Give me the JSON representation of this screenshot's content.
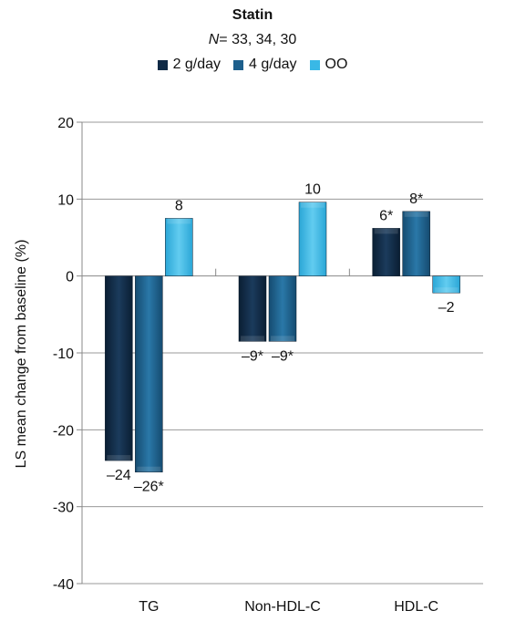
{
  "chart_data": {
    "type": "bar",
    "title": "Statin",
    "subtitle_prefix": "N",
    "subtitle_rest": "= 33, 34, 30",
    "ylabel": "LS mean change from baseline (%)",
    "xlabel": "",
    "ylim": [
      -40,
      20
    ],
    "yticks": [
      20,
      10,
      0,
      -10,
      -20,
      -30,
      -40
    ],
    "ytick_labels": [
      "20",
      "10",
      "0",
      "-10",
      "-20",
      "-30",
      "-40"
    ],
    "categories": [
      "TG",
      "Non-HDL-C",
      "HDL-C"
    ],
    "grid": true,
    "legend_position": "top",
    "series": [
      {
        "name": "2 g/day",
        "color": "#0f2a45",
        "values": [
          -24,
          -8.5,
          6.2
        ],
        "labels": [
          "–24",
          "–9*",
          "6*"
        ]
      },
      {
        "name": "4 g/day",
        "color": "#1d5f8c",
        "values": [
          -25.5,
          -8.5,
          8.4
        ],
        "labels": [
          "–26*",
          "–9*",
          "8*"
        ]
      },
      {
        "name": "OO",
        "color": "#39b8e6",
        "values": [
          7.5,
          9.6,
          -2.2
        ],
        "labels": [
          "8",
          "10",
          "–2"
        ]
      }
    ]
  }
}
